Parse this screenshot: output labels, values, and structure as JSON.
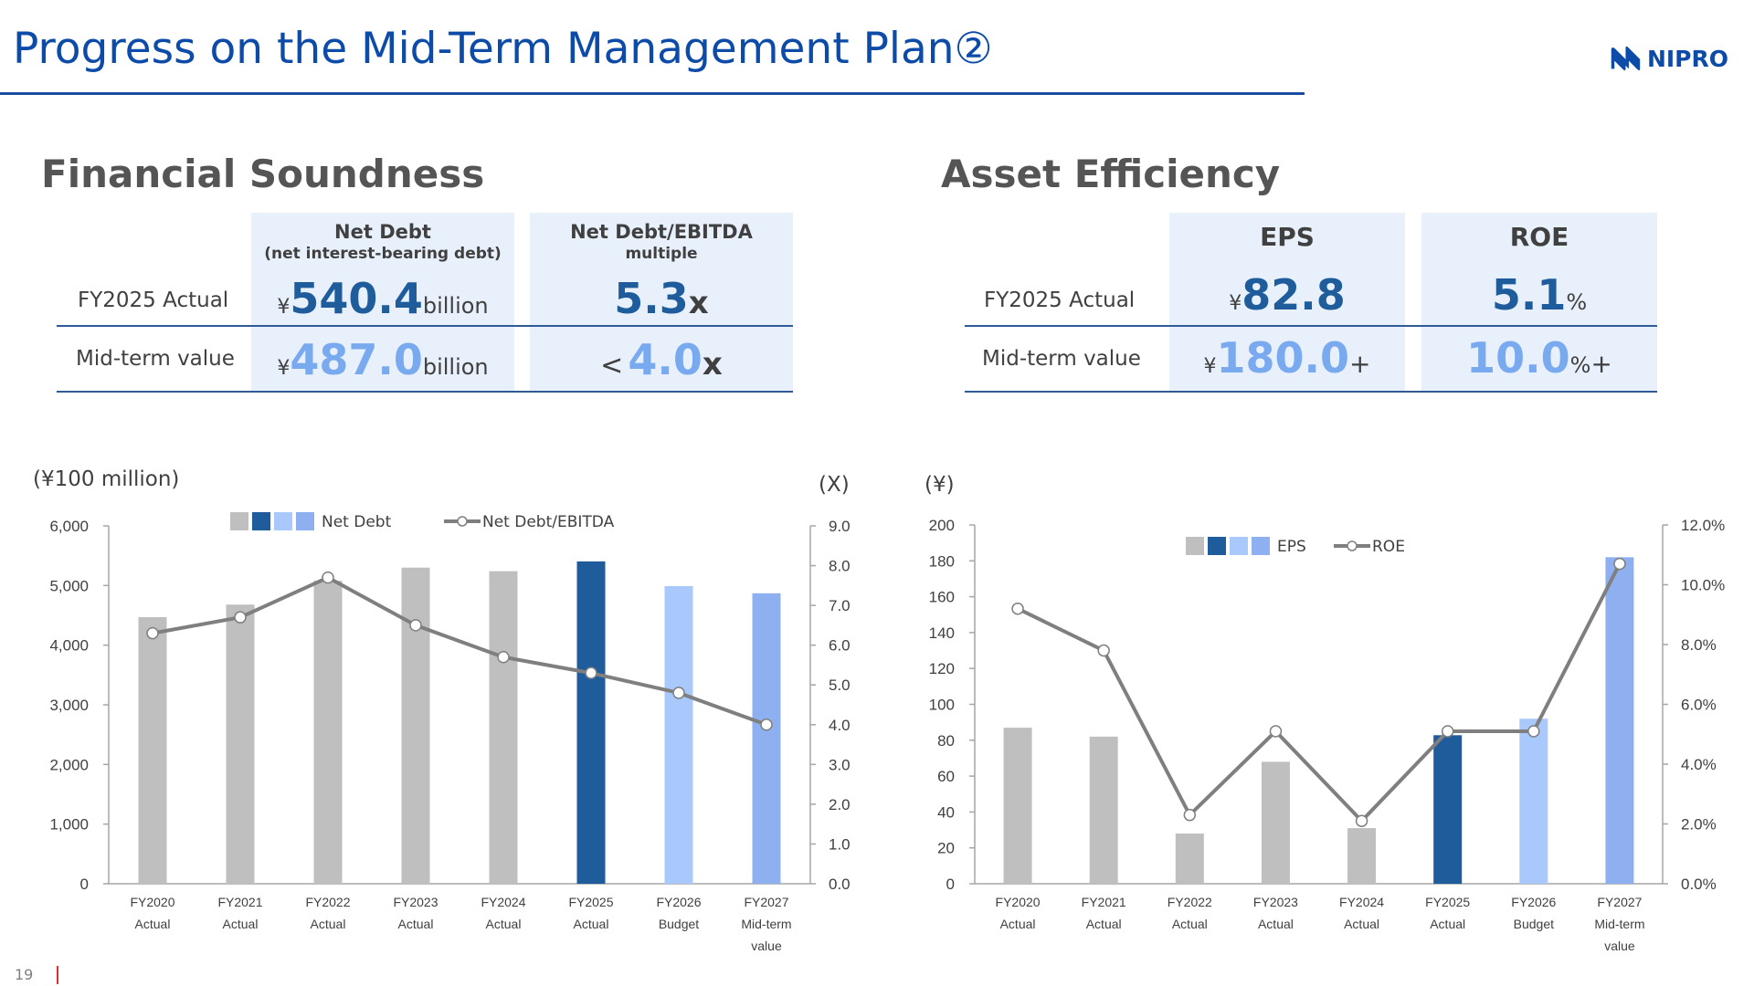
{
  "header": {
    "title": "Progress on the Mid-Term Management Plan②",
    "logo_text": "NIPRO"
  },
  "colors": {
    "accent_blue": "#0d4ba8",
    "dark_blue": "#1f5c9c",
    "light_blue": "#79a9ef",
    "bar_gray": "#bfbfbf",
    "bar_dark": "#1f5c9c",
    "bar_budget": "#a9c8fb",
    "bar_mid": "#8fb0f0",
    "line_gray": "#7f7f7f"
  },
  "financial": {
    "title": "Financial Soundness",
    "col1_line1": "Net Debt",
    "col1_line2": "(net interest-bearing debt)",
    "col2_line1": "Net Debt/EBITDA",
    "col2_line2": "multiple",
    "row1_label": "FY2025 Actual",
    "row2_label": "Mid-term value",
    "yen": "¥",
    "net_debt_actual": "540.4",
    "net_debt_mid": "487.0",
    "billion": "billion",
    "multiple_actual": "5.3",
    "multiple_mid_prefix": "<",
    "multiple_mid": "4.0",
    "x_unit": "x"
  },
  "asset": {
    "title": "Asset Efficiency",
    "col1": "EPS",
    "col2": "ROE",
    "row1_label": "FY2025 Actual",
    "row2_label": "Mid-term value",
    "yen": "¥",
    "eps_actual": "82.8",
    "eps_mid": "180.0",
    "plus": "+",
    "roe_actual": "5.1",
    "roe_mid": "10.0",
    "percent": "%"
  },
  "chart_data": [
    {
      "type": "bar",
      "unit_left": "(¥100 million)",
      "unit_right": "(X)",
      "categories": [
        [
          "FY2020",
          "Actual"
        ],
        [
          "FY2021",
          "Actual"
        ],
        [
          "FY2022",
          "Actual"
        ],
        [
          "FY2023",
          "Actual"
        ],
        [
          "FY2024",
          "Actual"
        ],
        [
          "FY2025",
          "Actual"
        ],
        [
          "FY2026",
          "Budget"
        ],
        [
          "FY2027",
          "Mid-term",
          "value"
        ]
      ],
      "y_left": {
        "min": 0,
        "max": 6000,
        "step": 1000,
        "ticks": [
          "0",
          "1,000",
          "2,000",
          "3,000",
          "4,000",
          "5,000",
          "6,000"
        ]
      },
      "y_right": {
        "min": 0,
        "max": 9,
        "step": 1,
        "ticks": [
          "0.0",
          "1.0",
          "2.0",
          "3.0",
          "4.0",
          "5.0",
          "6.0",
          "7.0",
          "8.0",
          "9.0"
        ]
      },
      "series": [
        {
          "name": "Net Debt",
          "kind": "bar",
          "axis": "left",
          "values": [
            4470,
            4680,
            5080,
            5300,
            5240,
            5404,
            4990,
            4870
          ],
          "colors": [
            "#bfbfbf",
            "#bfbfbf",
            "#bfbfbf",
            "#bfbfbf",
            "#bfbfbf",
            "#1f5c9c",
            "#a9c8fb",
            "#8fb0f0"
          ]
        },
        {
          "name": "Net Debt/EBITDA",
          "kind": "line",
          "axis": "right",
          "values": [
            6.3,
            6.7,
            7.7,
            6.5,
            5.7,
            5.3,
            4.8,
            4.0
          ]
        }
      ],
      "legend_swatches": [
        "#bfbfbf",
        "#1f5c9c",
        "#a9c8fb",
        "#8fb0f0"
      ]
    },
    {
      "type": "bar",
      "unit_left": "(¥)",
      "categories": [
        [
          "FY2020",
          "Actual"
        ],
        [
          "FY2021",
          "Actual"
        ],
        [
          "FY2022",
          "Actual"
        ],
        [
          "FY2023",
          "Actual"
        ],
        [
          "FY2024",
          "Actual"
        ],
        [
          "FY2025",
          "Actual"
        ],
        [
          "FY2026",
          "Budget"
        ],
        [
          "FY2027",
          "Mid-term",
          "value"
        ]
      ],
      "y_left": {
        "min": 0,
        "max": 200,
        "step": 20,
        "ticks": [
          "0",
          "20",
          "40",
          "60",
          "80",
          "100",
          "120",
          "140",
          "160",
          "180",
          "200"
        ]
      },
      "y_right": {
        "min": 0,
        "max": 12,
        "step": 2,
        "ticks": [
          "0.0%",
          "2.0%",
          "4.0%",
          "6.0%",
          "8.0%",
          "10.0%",
          "12.0%"
        ]
      },
      "series": [
        {
          "name": "EPS",
          "kind": "bar",
          "axis": "left",
          "values": [
            87,
            82,
            28,
            68,
            31,
            82.8,
            92,
            182
          ],
          "colors": [
            "#bfbfbf",
            "#bfbfbf",
            "#bfbfbf",
            "#bfbfbf",
            "#bfbfbf",
            "#1f5c9c",
            "#a9c8fb",
            "#8fb0f0"
          ]
        },
        {
          "name": "ROE",
          "kind": "line",
          "axis": "right",
          "values": [
            9.2,
            7.8,
            2.3,
            5.1,
            2.1,
            5.1,
            5.1,
            10.7
          ]
        }
      ],
      "legend_swatches": [
        "#bfbfbf",
        "#1f5c9c",
        "#a9c8fb",
        "#8fb0f0"
      ]
    }
  ],
  "footer": {
    "page_number": "19"
  }
}
